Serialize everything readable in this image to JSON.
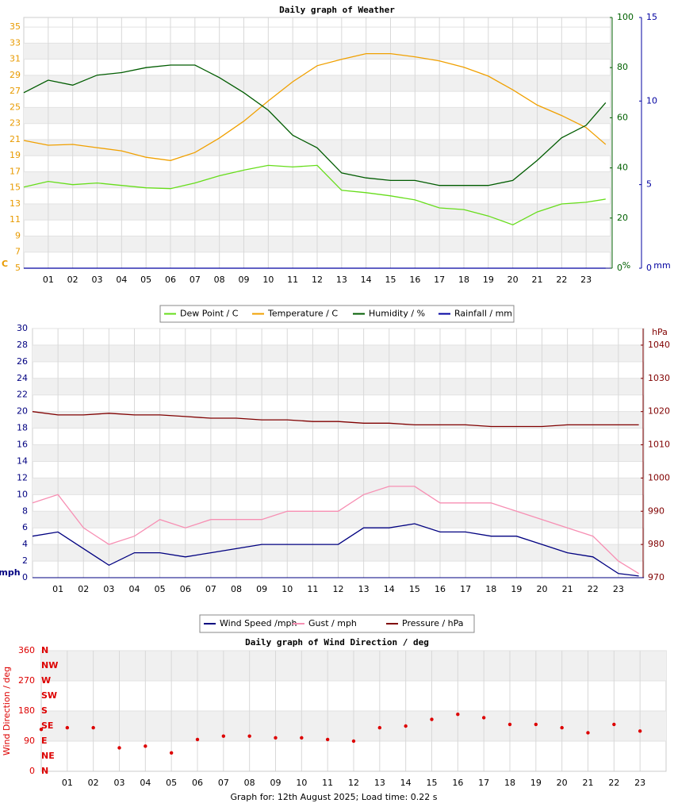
{
  "chart_data": [
    {
      "type": "line",
      "title": "Daily graph of Weather",
      "x": [
        0,
        1,
        2,
        3,
        4,
        5,
        6,
        7,
        8,
        9,
        10,
        11,
        12,
        13,
        14,
        15,
        16,
        17,
        18,
        19,
        20,
        21,
        22,
        23,
        23.8
      ],
      "xlim": [
        0,
        24
      ],
      "xticks": [
        {
          "value": 1,
          "label": "01"
        },
        {
          "value": 2,
          "label": "02"
        },
        {
          "value": 3,
          "label": "03"
        },
        {
          "value": 4,
          "label": "04"
        },
        {
          "value": 5,
          "label": "05"
        },
        {
          "value": 6,
          "label": "06"
        },
        {
          "value": 7,
          "label": "07"
        },
        {
          "value": 8,
          "label": "08"
        },
        {
          "value": 9,
          "label": "09"
        },
        {
          "value": 10,
          "label": "10"
        },
        {
          "value": 11,
          "label": "11"
        },
        {
          "value": 12,
          "label": "12"
        },
        {
          "value": 13,
          "label": "13"
        },
        {
          "value": 14,
          "label": "14"
        },
        {
          "value": 15,
          "label": "15"
        },
        {
          "value": 16,
          "label": "16"
        },
        {
          "value": 17,
          "label": "17"
        },
        {
          "value": 18,
          "label": "18"
        },
        {
          "value": 19,
          "label": "19"
        },
        {
          "value": 20,
          "label": "20"
        },
        {
          "value": 21,
          "label": "21"
        },
        {
          "value": 22,
          "label": "22"
        },
        {
          "value": 23,
          "label": "23"
        }
      ],
      "ylim": [
        5,
        36.2
      ],
      "yticks": [
        5,
        7,
        9,
        11,
        13,
        15,
        17,
        19,
        21,
        23,
        25,
        27,
        29,
        31,
        33,
        35
      ],
      "y_label": "C",
      "y2lim": [
        0,
        100
      ],
      "y2ticks": [
        0,
        20,
        40,
        60,
        80,
        100
      ],
      "y2_label": "%",
      "y3lim": [
        0,
        15
      ],
      "y3ticks": [
        0,
        5,
        10,
        15
      ],
      "y3_label": "mm",
      "grid": true,
      "series": [
        {
          "name": "Dew Point / C",
          "color": "#66dd1a",
          "values": [
            15.1,
            15.8,
            15.4,
            15.6,
            15.3,
            15.0,
            14.9,
            15.6,
            16.5,
            17.2,
            17.8,
            17.6,
            17.8,
            14.7,
            14.4,
            14.0,
            13.5,
            12.5,
            12.3,
            11.5,
            10.4,
            12.0,
            13.0,
            13.2,
            13.6
          ]
        },
        {
          "name": "Temperature / C",
          "color": "#f0a000",
          "values": [
            20.9,
            20.3,
            20.4,
            20.0,
            19.6,
            18.8,
            18.4,
            19.4,
            21.2,
            23.3,
            25.8,
            28.2,
            30.2,
            31.0,
            31.7,
            31.7,
            31.3,
            30.8,
            30.0,
            28.9,
            27.2,
            25.3,
            24.0,
            22.5,
            20.4
          ]
        },
        {
          "name": "Humidity / %",
          "color": "#005c00",
          "axis": "y2",
          "values": [
            70,
            75,
            73,
            77,
            78,
            80,
            81,
            81,
            76,
            70,
            63,
            53,
            48,
            38,
            36,
            35,
            35,
            33,
            33,
            33,
            35,
            43,
            52,
            57,
            66
          ]
        },
        {
          "name": "Rainfall / mm",
          "color": "#0000a0",
          "axis": "y3",
          "values": [
            0,
            0,
            0,
            0,
            0,
            0,
            0,
            0,
            0,
            0,
            0,
            0,
            0,
            0,
            0,
            0,
            0,
            0,
            0,
            0,
            0,
            0,
            0,
            0,
            0
          ]
        }
      ]
    },
    {
      "type": "line",
      "x": [
        0,
        1,
        2,
        3,
        4,
        5,
        6,
        7,
        8,
        9,
        10,
        11,
        12,
        13,
        14,
        15,
        16,
        17,
        18,
        19,
        20,
        21,
        22,
        23,
        23.8
      ],
      "xlim": [
        0,
        24
      ],
      "xticks": [
        {
          "value": 1,
          "label": "01"
        },
        {
          "value": 2,
          "label": "02"
        },
        {
          "value": 3,
          "label": "03"
        },
        {
          "value": 4,
          "label": "04"
        },
        {
          "value": 5,
          "label": "05"
        },
        {
          "value": 6,
          "label": "06"
        },
        {
          "value": 7,
          "label": "07"
        },
        {
          "value": 8,
          "label": "08"
        },
        {
          "value": 9,
          "label": "09"
        },
        {
          "value": 10,
          "label": "10"
        },
        {
          "value": 11,
          "label": "11"
        },
        {
          "value": 12,
          "label": "12"
        },
        {
          "value": 13,
          "label": "13"
        },
        {
          "value": 14,
          "label": "14"
        },
        {
          "value": 15,
          "label": "15"
        },
        {
          "value": 16,
          "label": "16"
        },
        {
          "value": 17,
          "label": "17"
        },
        {
          "value": 18,
          "label": "18"
        },
        {
          "value": 19,
          "label": "19"
        },
        {
          "value": 20,
          "label": "20"
        },
        {
          "value": 21,
          "label": "21"
        },
        {
          "value": 22,
          "label": "22"
        },
        {
          "value": 23,
          "label": "23"
        }
      ],
      "ylim": [
        0,
        30
      ],
      "yticks": [
        0,
        2,
        4,
        6,
        8,
        10,
        12,
        14,
        16,
        18,
        20,
        22,
        24,
        26,
        28,
        30
      ],
      "y_label": "mph",
      "y2lim": [
        970,
        1045
      ],
      "y2ticks": [
        970,
        980,
        990,
        1000,
        1010,
        1020,
        1030,
        1040
      ],
      "y2_label": "hPa",
      "grid": true,
      "series": [
        {
          "name": "Wind Speed /mph",
          "color": "#000080",
          "values": [
            5,
            5.5,
            3.5,
            1.5,
            3,
            3,
            2.5,
            3,
            3.5,
            4,
            4,
            4,
            4,
            6,
            6,
            6.5,
            5.5,
            5.5,
            5,
            5,
            4,
            3,
            2.5,
            0.5,
            0.2
          ]
        },
        {
          "name": "Gust / mph",
          "color": "#f78fb3",
          "values": [
            9,
            10,
            6,
            4,
            5,
            7,
            6,
            7,
            7,
            7,
            8,
            8,
            8,
            10,
            11,
            11,
            9,
            9,
            9,
            8,
            7,
            6,
            5,
            2,
            0.5
          ]
        },
        {
          "name": "Pressure / hPa",
          "color": "#800000",
          "axis": "y2",
          "values": [
            1020,
            1019,
            1019,
            1019.5,
            1019,
            1019,
            1018.5,
            1018,
            1018,
            1017.5,
            1017.5,
            1017,
            1017,
            1016.5,
            1016.5,
            1016,
            1016,
            1016,
            1015.5,
            1015.5,
            1015.5,
            1016,
            1016,
            1016,
            1016
          ]
        }
      ]
    },
    {
      "type": "scatter",
      "title": "Daily graph of Wind Direction / deg",
      "x": [
        0,
        1,
        2,
        3,
        4,
        5,
        6,
        7,
        8,
        9,
        10,
        11,
        12,
        13,
        14,
        15,
        16,
        17,
        18,
        19,
        20,
        21,
        22,
        23
      ],
      "xlim": [
        0,
        24
      ],
      "xticks": [
        {
          "value": 1,
          "label": "01"
        },
        {
          "value": 2,
          "label": "02"
        },
        {
          "value": 3,
          "label": "03"
        },
        {
          "value": 4,
          "label": "04"
        },
        {
          "value": 5,
          "label": "05"
        },
        {
          "value": 6,
          "label": "06"
        },
        {
          "value": 7,
          "label": "07"
        },
        {
          "value": 8,
          "label": "08"
        },
        {
          "value": 9,
          "label": "09"
        },
        {
          "value": 10,
          "label": "10"
        },
        {
          "value": 11,
          "label": "11"
        },
        {
          "value": 12,
          "label": "12"
        },
        {
          "value": 13,
          "label": "13"
        },
        {
          "value": 14,
          "label": "14"
        },
        {
          "value": 15,
          "label": "15"
        },
        {
          "value": 16,
          "label": "16"
        },
        {
          "value": 17,
          "label": "17"
        },
        {
          "value": 18,
          "label": "18"
        },
        {
          "value": 19,
          "label": "19"
        },
        {
          "value": 20,
          "label": "20"
        },
        {
          "value": 21,
          "label": "21"
        },
        {
          "value": 22,
          "label": "22"
        },
        {
          "value": 23,
          "label": "23"
        }
      ],
      "ylim": [
        0,
        360
      ],
      "yticks": [
        0,
        90,
        180,
        270,
        360
      ],
      "y_label": "Wind Direction / deg",
      "compass": [
        {
          "value": 360,
          "label": "N"
        },
        {
          "value": 315,
          "label": "NW"
        },
        {
          "value": 270,
          "label": "W"
        },
        {
          "value": 225,
          "label": "SW"
        },
        {
          "value": 180,
          "label": "S"
        },
        {
          "value": 135,
          "label": "SE"
        },
        {
          "value": 90,
          "label": "E"
        },
        {
          "value": 45,
          "label": "NE"
        },
        {
          "value": 0,
          "label": "N"
        }
      ],
      "grid": true,
      "color": "#dd0000",
      "values": [
        125,
        130,
        130,
        70,
        75,
        55,
        95,
        105,
        105,
        100,
        100,
        95,
        90,
        130,
        135,
        155,
        170,
        160,
        140,
        140,
        130,
        115,
        140,
        120
      ]
    }
  ],
  "footer": "Graph for: 12th August 2025; Load time: 0.22 s"
}
